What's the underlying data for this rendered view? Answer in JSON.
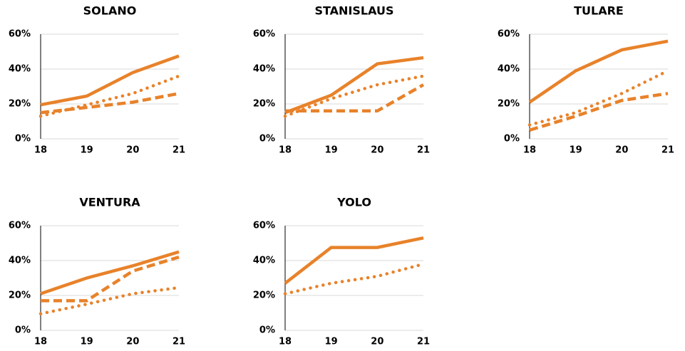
{
  "chart_data": [
    {
      "type": "line",
      "title": "SOLANO",
      "categories": [
        "18",
        "19",
        "20",
        "21"
      ],
      "series": [
        {
          "color": "#e8822a",
          "style": "solid",
          "values": [
            19.5,
            24.5,
            38,
            47.5
          ]
        },
        {
          "color": "#e8822a",
          "style": "dashed",
          "values": [
            15,
            18,
            21,
            26
          ]
        },
        {
          "color": "#e8822a",
          "style": "dotted",
          "values": [
            13,
            19.5,
            26,
            36
          ]
        }
      ],
      "ylim": [
        0,
        60
      ],
      "yticks": [
        {
          "value": 0,
          "label": "0%"
        },
        {
          "value": 20,
          "label": "20%"
        },
        {
          "value": 40,
          "label": "40%"
        },
        {
          "value": 60,
          "label": "60%"
        }
      ],
      "grid": true
    },
    {
      "type": "line",
      "title": "STANISLAUS",
      "categories": [
        "18",
        "19",
        "20",
        "21"
      ],
      "series": [
        {
          "color": "#e8822a",
          "style": "solid",
          "values": [
            15,
            25,
            43,
            46.5
          ]
        },
        {
          "color": "#e8822a",
          "style": "dashed",
          "values": [
            16,
            16,
            16,
            31
          ]
        },
        {
          "color": "#e8822a",
          "style": "dotted",
          "values": [
            13,
            23,
            31,
            36
          ]
        }
      ],
      "ylim": [
        0,
        60
      ],
      "yticks": [
        {
          "value": 0,
          "label": "0%"
        },
        {
          "value": 20,
          "label": "20%"
        },
        {
          "value": 40,
          "label": "40%"
        },
        {
          "value": 60,
          "label": "60%"
        }
      ],
      "grid": true
    },
    {
      "type": "line",
      "title": "TULARE",
      "categories": [
        "18",
        "19",
        "20",
        "21"
      ],
      "series": [
        {
          "color": "#e8822a",
          "style": "solid",
          "values": [
            21,
            39,
            51,
            56
          ]
        },
        {
          "color": "#e8822a",
          "style": "dashed",
          "values": [
            5,
            13,
            22,
            26
          ]
        },
        {
          "color": "#e8822a",
          "style": "dotted",
          "values": [
            8,
            15,
            26,
            39
          ]
        }
      ],
      "ylim": [
        0,
        60
      ],
      "yticks": [
        {
          "value": 0,
          "label": "0%"
        },
        {
          "value": 20,
          "label": "20%"
        },
        {
          "value": 40,
          "label": "40%"
        },
        {
          "value": 60,
          "label": "60%"
        }
      ],
      "grid": true
    },
    {
      "type": "line",
      "title": "VENTURA",
      "categories": [
        "18",
        "19",
        "20",
        "21"
      ],
      "series": [
        {
          "color": "#e8822a",
          "style": "solid",
          "values": [
            21,
            30,
            37,
            45
          ]
        },
        {
          "color": "#e8822a",
          "style": "dashed",
          "values": [
            17,
            17,
            34,
            42
          ]
        },
        {
          "color": "#e8822a",
          "style": "dotted",
          "values": [
            9.5,
            15,
            21,
            24.5
          ]
        }
      ],
      "ylim": [
        0,
        60
      ],
      "yticks": [
        {
          "value": 0,
          "label": "0%"
        },
        {
          "value": 20,
          "label": "20%"
        },
        {
          "value": 40,
          "label": "40%"
        },
        {
          "value": 60,
          "label": "60%"
        }
      ],
      "grid": true
    },
    {
      "type": "line",
      "title": "YOLO",
      "categories": [
        "18",
        "19",
        "20",
        "21"
      ],
      "series": [
        {
          "color": "#e8822a",
          "style": "solid",
          "values": [
            27,
            47.5,
            47.5,
            53
          ]
        },
        {
          "color": "#e8822a",
          "style": "dotted",
          "values": [
            21,
            27,
            31,
            38
          ]
        }
      ],
      "ylim": [
        0,
        60
      ],
      "yticks": [
        {
          "value": 0,
          "label": "0%"
        },
        {
          "value": 20,
          "label": "20%"
        },
        {
          "value": 40,
          "label": "40%"
        },
        {
          "value": 60,
          "label": "60%"
        }
      ],
      "grid": true
    }
  ]
}
